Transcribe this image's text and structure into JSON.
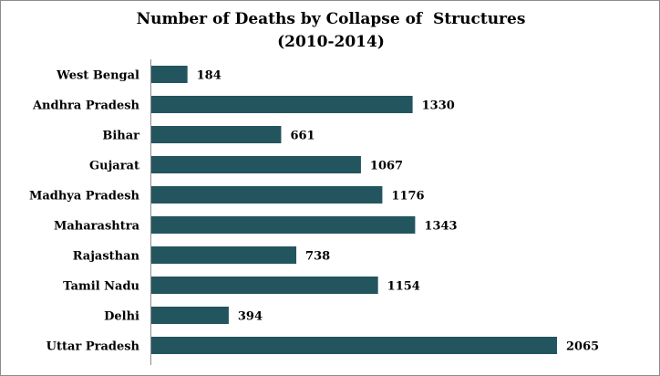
{
  "chart_data": {
    "type": "bar",
    "orientation": "horizontal",
    "title_lines": [
      "Number of Deaths by Collapse of  Structures",
      "(2010-2014)"
    ],
    "categories": [
      "West Bengal",
      "Andhra Pradesh",
      "Bihar",
      "Gujarat",
      "Madhya Pradesh",
      "Maharashtra",
      "Rajasthan",
      "Tamil Nadu",
      "Delhi",
      "Uttar Pradesh"
    ],
    "values": [
      184,
      1330,
      661,
      1067,
      1176,
      1343,
      738,
      1154,
      394,
      2065
    ],
    "value_labels": [
      "184",
      "1330",
      "661",
      "1067",
      "1176",
      "1343",
      "738",
      "1154",
      "394",
      "2065"
    ],
    "xlim": [
      0,
      2065
    ],
    "grid": false,
    "legend": "none",
    "bar_color": "#23555f"
  }
}
